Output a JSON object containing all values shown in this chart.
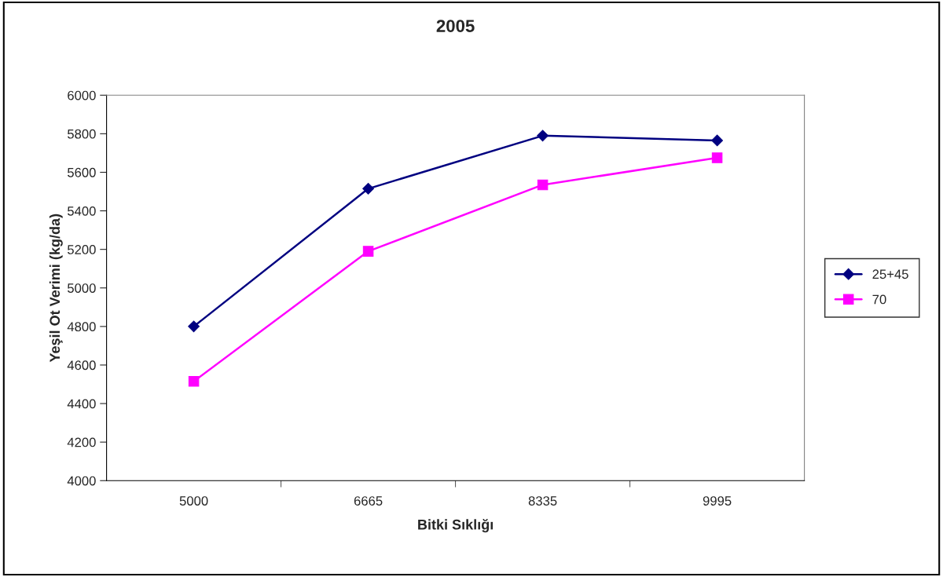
{
  "chart_data": {
    "type": "line",
    "title": "2005",
    "xlabel": "Bitki Sıklığı",
    "ylabel": "Yeşil Ot Verimi (kg/da)",
    "categories": [
      "5000",
      "6665",
      "8335",
      "9995"
    ],
    "series": [
      {
        "name": "25+45",
        "color": "#000080",
        "marker": "diamond",
        "values": [
          4800,
          5515,
          5790,
          5765
        ]
      },
      {
        "name": "70",
        "color": "#ff00ff",
        "marker": "square",
        "values": [
          4515,
          5190,
          5535,
          5675
        ]
      }
    ],
    "ylim": [
      4000,
      6000
    ],
    "yticks": [
      4000,
      4200,
      4400,
      4600,
      4800,
      5000,
      5200,
      5400,
      5600,
      5800,
      6000
    ],
    "grid": false,
    "legend": "right"
  }
}
